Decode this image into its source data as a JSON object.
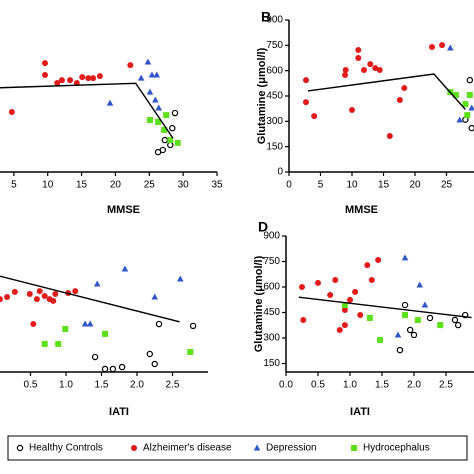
{
  "chart_data": [
    {
      "type": "scatter",
      "x_label": "MMSE",
      "xlim": [
        0,
        35
      ],
      "ylim": [
        0,
        900
      ],
      "xticks": [
        5,
        10,
        15,
        20,
        25,
        30,
        35
      ],
      "series": [
        {
          "x": [
            28.8,
            28.4,
            26.3,
            27.0,
            28.1,
            27.3
          ],
          "values": [
            349,
            260,
            118,
            130,
            160,
            189
          ]
        },
        {
          "x": [
            4.7,
            9.6,
            9.6,
            11.4,
            12.1,
            13.3,
            14.3,
            15.1,
            16.0,
            16.7,
            17.7,
            22.2
          ],
          "values": [
            355,
            645,
            574,
            527,
            544,
            544,
            527,
            562,
            556,
            556,
            568,
            633
          ]
        },
        {
          "x": [
            24.8,
            25.4,
            23.8,
            26.1,
            19.2,
            25.1,
            25.9,
            26.4
          ],
          "values": [
            651,
            574,
            556,
            574,
            408,
            473,
            426,
            379
          ]
        },
        {
          "x": [
            25.1,
            26.3,
            27.2,
            28.1,
            29.2,
            27.5
          ],
          "values": [
            308,
            296,
            249,
            189,
            172,
            337
          ]
        }
      ],
      "fit": {
        "x": [
          0,
          23,
          28.5
        ],
        "values": [
          495,
          525,
          200
        ]
      }
    },
    {
      "type": "scatter",
      "panel_label": "B",
      "x_label": "MMSE",
      "y_label": "Glutamine (μmol/l)",
      "xlim": [
        0,
        30
      ],
      "ylim": [
        0,
        900
      ],
      "xticks": [
        0,
        5,
        10,
        15,
        20,
        25
      ],
      "yticks": [
        0,
        150,
        300,
        450,
        600,
        750,
        900
      ],
      "series": [
        {
          "x": [
            28.7,
            29.0,
            28.0
          ],
          "values": [
            544,
            260,
            310
          ]
        },
        {
          "x": [
            2.7,
            2.7,
            4.0,
            8.9,
            9.0,
            10.0,
            11.0,
            11.0,
            11.9,
            12.9,
            13.7,
            14.4,
            16.0,
            17.6,
            18.3,
            22.7,
            24.3
          ],
          "values": [
            544,
            414,
            331,
            574,
            604,
            367,
            722,
            675,
            604,
            639,
            615,
            604,
            213,
            426,
            497,
            740,
            751
          ]
        },
        {
          "x": [
            25.6,
            27.1,
            29.0
          ],
          "values": [
            734,
            308,
            379
          ]
        },
        {
          "x": [
            25.6,
            26.5,
            28.0,
            28.7,
            28.3
          ],
          "values": [
            473,
            456,
            402,
            456,
            337
          ]
        }
      ],
      "fit": {
        "x": [
          3,
          23,
          28
        ],
        "values": [
          480,
          580,
          370
        ]
      }
    },
    {
      "type": "scatter",
      "x_label": "IATI",
      "xlim": [
        0,
        3
      ],
      "ylim": [
        100,
        900
      ],
      "xticks": [
        0.5,
        {
          "value": 1,
          "label": "1.0"
        },
        1.5,
        {
          "value": 2,
          "label": "2.0"
        },
        2.5
      ],
      "series": [
        {
          "x": [
            1.41,
            1.55,
            1.66,
            1.79,
            2.18,
            2.25,
            2.31,
            2.79
          ],
          "values": [
            188,
            118,
            118,
            129,
            206,
            147,
            382,
            371
          ]
        },
        {
          "x": [
            0.07,
            0.17,
            0.28,
            0.49,
            0.59,
            0.63,
            0.7,
            0.77,
            0.85,
            1.03,
            1.13,
            0.82,
            0.54
          ],
          "values": [
            529,
            541,
            571,
            559,
            529,
            576,
            547,
            529,
            559,
            565,
            576,
            518,
            382
          ]
        },
        {
          "x": [
            1.44,
            1.83,
            2.25,
            2.61,
            1.27,
            1.34
          ],
          "values": [
            618,
            706,
            541,
            647,
            382,
            382
          ]
        },
        {
          "x": [
            0.7,
            0.99,
            0.89,
            1.55,
            2.75
          ],
          "values": [
            265,
            353,
            265,
            324,
            218
          ]
        }
      ],
      "fit": {
        "x": [
          0,
          2.6
        ],
        "values": [
          671,
          395
        ]
      }
    },
    {
      "type": "scatter",
      "panel_label": "D",
      "x_label": "IATI",
      "y_label": "Glutamine (μmol/l)",
      "xlim": [
        0,
        3
      ],
      "ylim": [
        100,
        900
      ],
      "xticks": [
        {
          "value": 0,
          "label": "0.0"
        },
        0.5,
        {
          "value": 1,
          "label": "1.0"
        },
        1.5,
        {
          "value": 2,
          "label": "2.0"
        },
        2.5
      ],
      "yticks": [
        150,
        300,
        450,
        600,
        750,
        900
      ],
      "series": [
        {
          "x": [
            1.86,
            1.94,
            2.0,
            1.78,
            2.25,
            2.64,
            2.8,
            2.69
          ],
          "values": [
            494,
            347,
            318,
            229,
            418,
            406,
            435,
            376
          ]
        },
        {
          "x": [
            0.25,
            0.27,
            0.5,
            0.69,
            0.77,
            0.84,
            0.92,
            1.0,
            1.08,
            1.16,
            1.27,
            1.44,
            1.34,
            0.92
          ],
          "values": [
            600,
            406,
            624,
            553,
            641,
            347,
            376,
            524,
            571,
            435,
            729,
            759,
            641,
            465
          ]
        },
        {
          "x": [
            1.86,
            2.09,
            2.17,
            1.75
          ],
          "values": [
            771,
            612,
            494,
            318
          ]
        },
        {
          "x": [
            0.92,
            1.31,
            1.47,
            1.86,
            2.06,
            2.41
          ],
          "values": [
            494,
            418,
            288,
            435,
            406,
            376
          ]
        }
      ],
      "fit": {
        "x": [
          0.2,
          2.9
        ],
        "values": [
          540,
          420
        ]
      }
    }
  ],
  "legend": {
    "entries": [
      {
        "name": "Healthy Controls",
        "color": "#000000",
        "marker": "open-circle"
      },
      {
        "name": "Alzheimer's disease",
        "color": "#e31a1c",
        "marker": "circle"
      },
      {
        "name": "Depression",
        "color": "#2f55c8",
        "marker": "triangle"
      },
      {
        "name": "Hydrocephalus",
        "color": "#5ee01a",
        "marker": "square"
      }
    ]
  }
}
